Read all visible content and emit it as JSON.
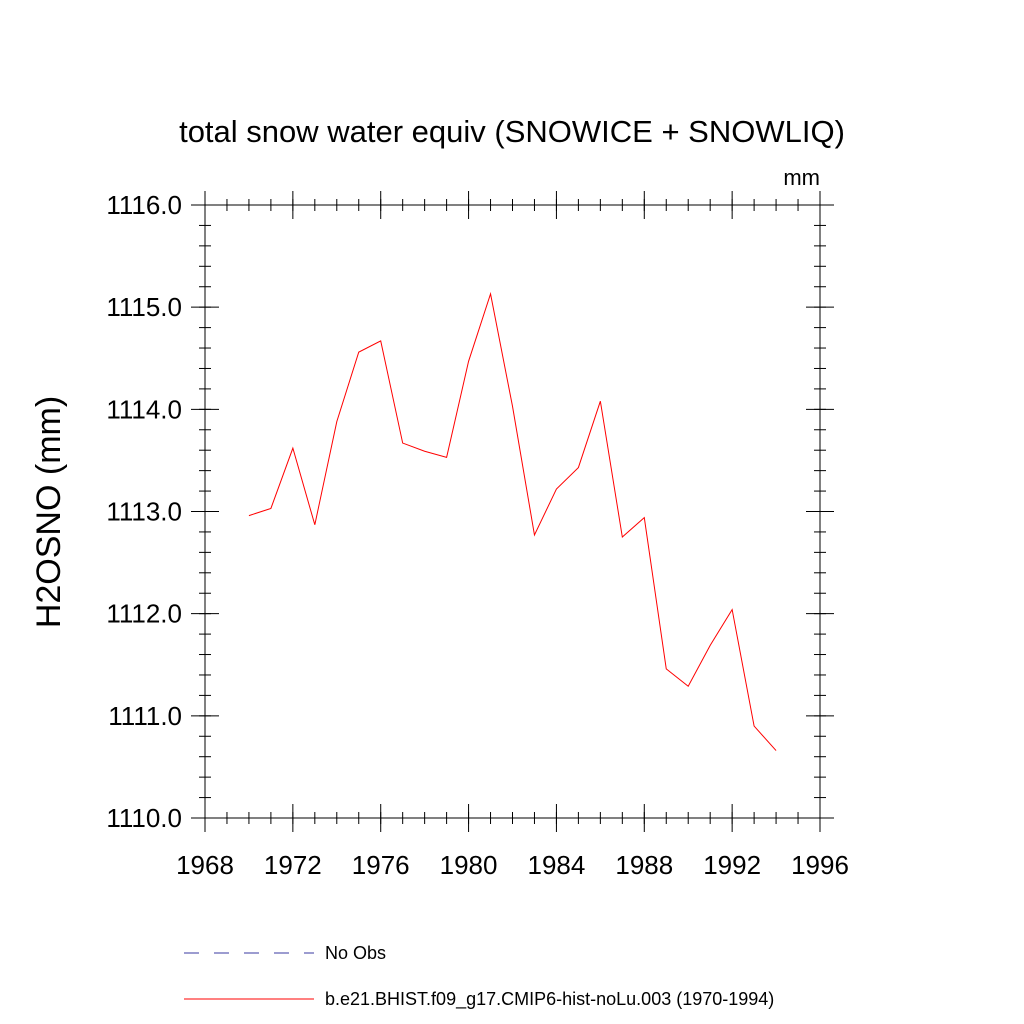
{
  "chart_data": {
    "type": "line",
    "title": "total snow water equiv (SNOWICE + SNOWLIQ)",
    "units_label": "mm",
    "ylabel": "H2OSNO  (mm)",
    "xlabel": "",
    "xlim": [
      1968,
      1996
    ],
    "ylim": [
      1110.0,
      1116.0
    ],
    "x_ticks": [
      "1968",
      "1972",
      "1976",
      "1980",
      "1984",
      "1988",
      "1992",
      "1996"
    ],
    "x_tick_values": [
      1968,
      1972,
      1976,
      1980,
      1984,
      1988,
      1992,
      1996
    ],
    "y_ticks": [
      "1110.0",
      "1111.0",
      "1112.0",
      "1113.0",
      "1114.0",
      "1115.0",
      "1116.0"
    ],
    "y_tick_values": [
      1110,
      1111,
      1112,
      1113,
      1114,
      1115,
      1116
    ],
    "grid": false,
    "legend_placement": "bottom",
    "series": [
      {
        "name": "No Obs",
        "color": "#3a3aa0",
        "style": "dashed",
        "x": [],
        "values": []
      },
      {
        "name": "b.e21.BHIST.f09_g17.CMIP6-hist-noLu.003 (1970-1994)",
        "color": "#ff0000",
        "style": "solid",
        "x": [
          1970,
          1971,
          1972,
          1973,
          1974,
          1975,
          1976,
          1977,
          1978,
          1979,
          1980,
          1981,
          1982,
          1983,
          1984,
          1985,
          1986,
          1987,
          1988,
          1989,
          1990,
          1991,
          1992,
          1993,
          1994
        ],
        "values": [
          1112.96,
          1113.03,
          1113.62,
          1112.87,
          1113.88,
          1114.56,
          1114.67,
          1113.67,
          1113.59,
          1113.53,
          1114.47,
          1115.13,
          1114.03,
          1112.77,
          1113.22,
          1113.43,
          1114.08,
          1112.75,
          1112.94,
          1111.46,
          1111.29,
          1111.69,
          1112.04,
          1110.9,
          1110.66
        ]
      }
    ]
  }
}
